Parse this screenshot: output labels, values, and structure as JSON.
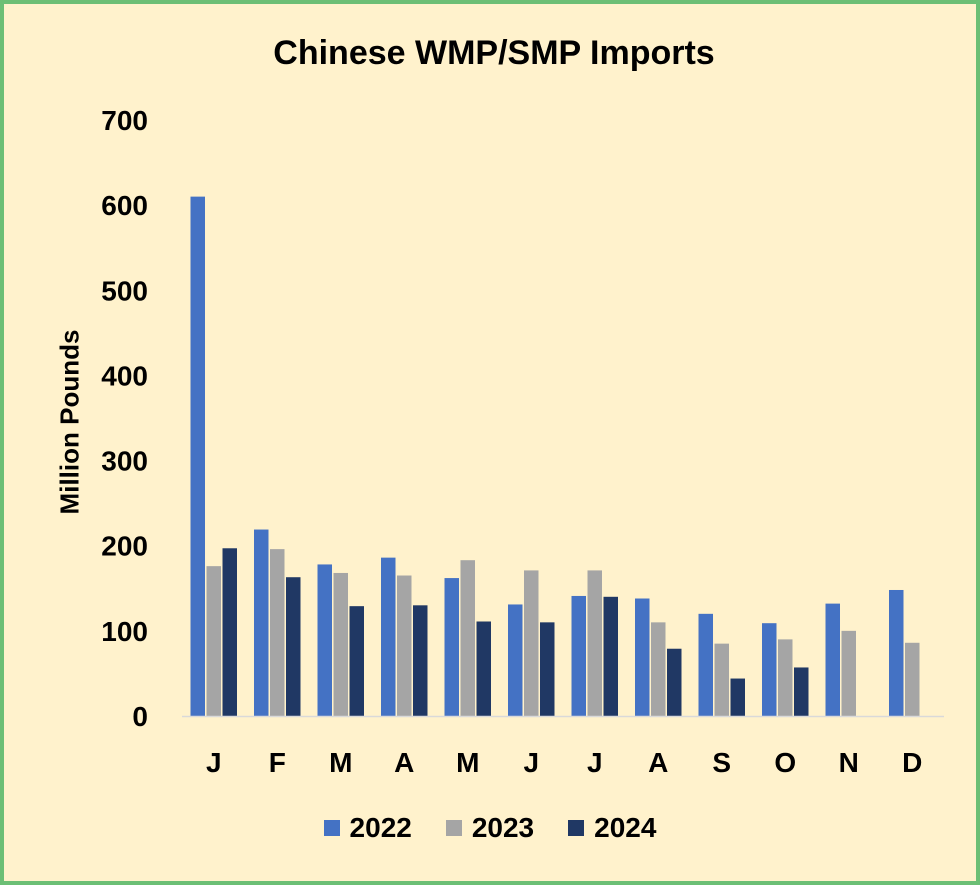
{
  "chart_data": {
    "type": "bar",
    "title": "Chinese WMP/SMP Imports",
    "ylabel": "Million Pounds",
    "ylim": [
      0,
      700
    ],
    "yticks": [
      0,
      100,
      200,
      300,
      400,
      500,
      600,
      700
    ],
    "categories": [
      "J",
      "F",
      "M",
      "A",
      "M",
      "J",
      "J",
      "A",
      "S",
      "O",
      "N",
      "D"
    ],
    "series": [
      {
        "name": "2022",
        "color": "#4472c4",
        "values": [
          610,
          219,
          178,
          186,
          162,
          131,
          141,
          138,
          120,
          109,
          132,
          148
        ]
      },
      {
        "name": "2023",
        "color": "#a5a5a5",
        "values": [
          176,
          196,
          168,
          165,
          183,
          171,
          171,
          110,
          85,
          90,
          100,
          86
        ]
      },
      {
        "name": "2024",
        "color": "#203864",
        "values": [
          197,
          163,
          129,
          130,
          111,
          110,
          140,
          79,
          44,
          57,
          null,
          null
        ]
      }
    ],
    "grid": false,
    "legend_position": "bottom"
  },
  "colors": {
    "background": "#fff2cc",
    "border": "#6cbf75",
    "axis_line": "#d9d9d9"
  }
}
